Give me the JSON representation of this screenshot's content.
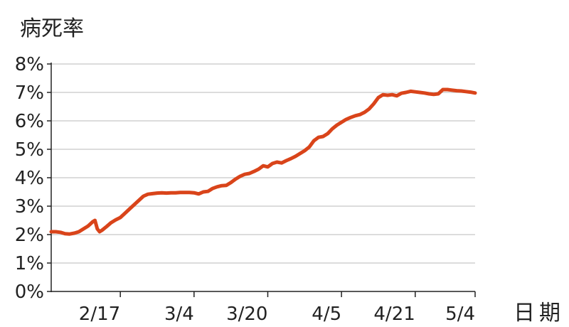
{
  "chart_data": {
    "type": "line",
    "ylabel": "病死率",
    "xlabel": "日期",
    "xlim": [
      0,
      92
    ],
    "ylim": [
      0,
      8
    ],
    "x_ticks": [
      {
        "x": 15,
        "label": "2/17"
      },
      {
        "x": 31,
        "label": "3/4"
      },
      {
        "x": 47,
        "label": "3/20"
      },
      {
        "x": 63,
        "label": "4/5"
      },
      {
        "x": 79,
        "label": "4/21"
      },
      {
        "x": 92,
        "label": "5/4"
      }
    ],
    "y_ticks": [
      {
        "y": 0,
        "label": "0%"
      },
      {
        "y": 1,
        "label": "1%"
      },
      {
        "y": 2,
        "label": "2%"
      },
      {
        "y": 3,
        "label": "3%"
      },
      {
        "y": 4,
        "label": "4%"
      },
      {
        "y": 5,
        "label": "5%"
      },
      {
        "y": 6,
        "label": "6%"
      },
      {
        "y": 7,
        "label": "7%"
      },
      {
        "y": 8,
        "label": "8%"
      }
    ],
    "grid": true,
    "series": [
      {
        "color": "#d9441a",
        "points": [
          [
            0,
            2.1
          ],
          [
            1,
            2.1
          ],
          [
            2,
            2.08
          ],
          [
            3,
            2.03
          ],
          [
            4,
            2.02
          ],
          [
            5,
            2.05
          ],
          [
            6,
            2.1
          ],
          [
            7,
            2.2
          ],
          [
            8,
            2.3
          ],
          [
            9,
            2.45
          ],
          [
            9.5,
            2.5
          ],
          [
            10,
            2.2
          ],
          [
            10.5,
            2.1
          ],
          [
            11,
            2.15
          ],
          [
            12,
            2.28
          ],
          [
            13,
            2.42
          ],
          [
            14,
            2.52
          ],
          [
            15,
            2.6
          ],
          [
            16,
            2.75
          ],
          [
            17,
            2.9
          ],
          [
            18,
            3.05
          ],
          [
            19,
            3.2
          ],
          [
            20,
            3.35
          ],
          [
            21,
            3.42
          ],
          [
            22,
            3.44
          ],
          [
            23,
            3.46
          ],
          [
            24,
            3.47
          ],
          [
            25,
            3.46
          ],
          [
            26,
            3.47
          ],
          [
            27,
            3.47
          ],
          [
            28,
            3.48
          ],
          [
            29,
            3.48
          ],
          [
            30,
            3.48
          ],
          [
            31,
            3.47
          ],
          [
            32,
            3.43
          ],
          [
            33,
            3.5
          ],
          [
            34,
            3.52
          ],
          [
            35,
            3.62
          ],
          [
            36,
            3.68
          ],
          [
            37,
            3.72
          ],
          [
            38,
            3.73
          ],
          [
            39,
            3.83
          ],
          [
            40,
            3.95
          ],
          [
            41,
            4.05
          ],
          [
            42,
            4.12
          ],
          [
            43,
            4.15
          ],
          [
            44,
            4.22
          ],
          [
            45,
            4.3
          ],
          [
            46,
            4.42
          ],
          [
            47,
            4.38
          ],
          [
            48,
            4.5
          ],
          [
            49,
            4.55
          ],
          [
            50,
            4.52
          ],
          [
            51,
            4.6
          ],
          [
            52,
            4.67
          ],
          [
            53,
            4.75
          ],
          [
            54,
            4.85
          ],
          [
            55,
            4.95
          ],
          [
            56,
            5.08
          ],
          [
            57,
            5.3
          ],
          [
            58,
            5.42
          ],
          [
            59,
            5.45
          ],
          [
            60,
            5.55
          ],
          [
            61,
            5.72
          ],
          [
            62,
            5.85
          ],
          [
            63,
            5.95
          ],
          [
            64,
            6.05
          ],
          [
            65,
            6.12
          ],
          [
            66,
            6.18
          ],
          [
            67,
            6.22
          ],
          [
            68,
            6.3
          ],
          [
            69,
            6.42
          ],
          [
            70,
            6.6
          ],
          [
            71,
            6.82
          ],
          [
            72,
            6.92
          ],
          [
            73,
            6.9
          ],
          [
            74,
            6.92
          ],
          [
            75,
            6.88
          ],
          [
            76,
            6.97
          ],
          [
            77,
            7.0
          ],
          [
            78,
            7.04
          ],
          [
            79,
            7.02
          ],
          [
            80,
            7.0
          ],
          [
            81,
            6.98
          ],
          [
            82,
            6.95
          ],
          [
            83,
            6.93
          ],
          [
            84,
            6.95
          ],
          [
            85,
            7.1
          ],
          [
            86,
            7.1
          ],
          [
            87,
            7.08
          ],
          [
            88,
            7.06
          ],
          [
            89,
            7.05
          ],
          [
            90,
            7.03
          ],
          [
            91,
            7.01
          ],
          [
            92,
            6.98
          ]
        ]
      }
    ]
  }
}
